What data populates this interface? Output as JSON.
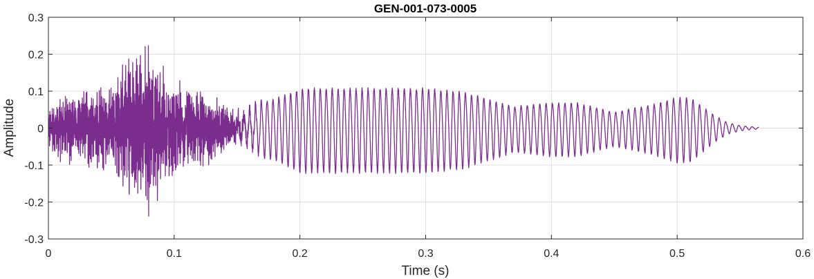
{
  "chart_data": {
    "type": "line",
    "title": "GEN-001-073-0005",
    "xlabel": "Time (s)",
    "ylabel": "Amplitude",
    "xlim": [
      0,
      0.6
    ],
    "ylim": [
      -0.3,
      0.3
    ],
    "xticks": [
      0,
      0.1,
      0.2,
      0.3,
      0.4,
      0.5,
      0.6
    ],
    "xtick_labels": [
      "0",
      "0.1",
      "0.2",
      "0.3",
      "0.4",
      "0.5",
      "0.6"
    ],
    "yticks": [
      -0.3,
      -0.2,
      -0.1,
      0,
      0.1,
      0.2,
      0.3
    ],
    "ytick_labels": [
      "-0.3",
      "-0.2",
      "-0.1",
      "0",
      "0.1",
      "0.2",
      "0.3"
    ],
    "grid": true,
    "series": [
      {
        "color": "#7b2d8e",
        "envelope_t": [
          0,
          0.01,
          0.03,
          0.05,
          0.06,
          0.07,
          0.075,
          0.08,
          0.085,
          0.09,
          0.1,
          0.11,
          0.12,
          0.13,
          0.14,
          0.15,
          0.18,
          0.2,
          0.25,
          0.3,
          0.33,
          0.35,
          0.37,
          0.4,
          0.42,
          0.45,
          0.48,
          0.5,
          0.51,
          0.52,
          0.53,
          0.54,
          0.55,
          0.565
        ],
        "envelope_a": [
          0.05,
          0.09,
          0.1,
          0.11,
          0.17,
          0.2,
          0.21,
          0.24,
          0.2,
          0.16,
          0.14,
          0.1,
          0.1,
          0.09,
          0.07,
          0.06,
          0.08,
          0.11,
          0.11,
          0.11,
          0.1,
          0.08,
          0.06,
          0.07,
          0.07,
          0.045,
          0.065,
          0.085,
          0.085,
          0.06,
          0.035,
          0.015,
          0.007,
          0.002
        ],
        "noise_until_s": 0.14,
        "tone_hz_start": 225,
        "tone_hz_end": 190
      }
    ]
  }
}
